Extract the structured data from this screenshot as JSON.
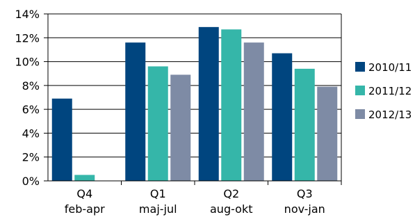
{
  "chart_data": {
    "type": "bar",
    "categories": [
      {
        "line1": "Q4",
        "line2": "feb-apr"
      },
      {
        "line1": "Q1",
        "line2": "maj-jul"
      },
      {
        "line1": "Q2",
        "line2": "aug-okt"
      },
      {
        "line1": "Q3",
        "line2": "nov-jan"
      }
    ],
    "series": [
      {
        "name": "2010/11",
        "color": "#00457f",
        "values": [
          6.9,
          11.6,
          12.9,
          10.7
        ]
      },
      {
        "name": "2011/12",
        "color": "#35b6a9",
        "values": [
          0.5,
          9.6,
          12.7,
          9.4
        ]
      },
      {
        "name": "2012/13",
        "color": "#7e8ba5",
        "values": [
          null,
          8.9,
          11.6,
          7.9
        ]
      }
    ],
    "ylim": [
      0,
      14
    ],
    "yticks": [
      0,
      2,
      4,
      6,
      8,
      10,
      12,
      14
    ],
    "ytick_labels": [
      "0%",
      "2%",
      "4%",
      "6%",
      "8%",
      "10%",
      "12%",
      "14%"
    ],
    "grid": true,
    "legend_position": "right",
    "title": "",
    "xlabel": "",
    "ylabel": ""
  }
}
